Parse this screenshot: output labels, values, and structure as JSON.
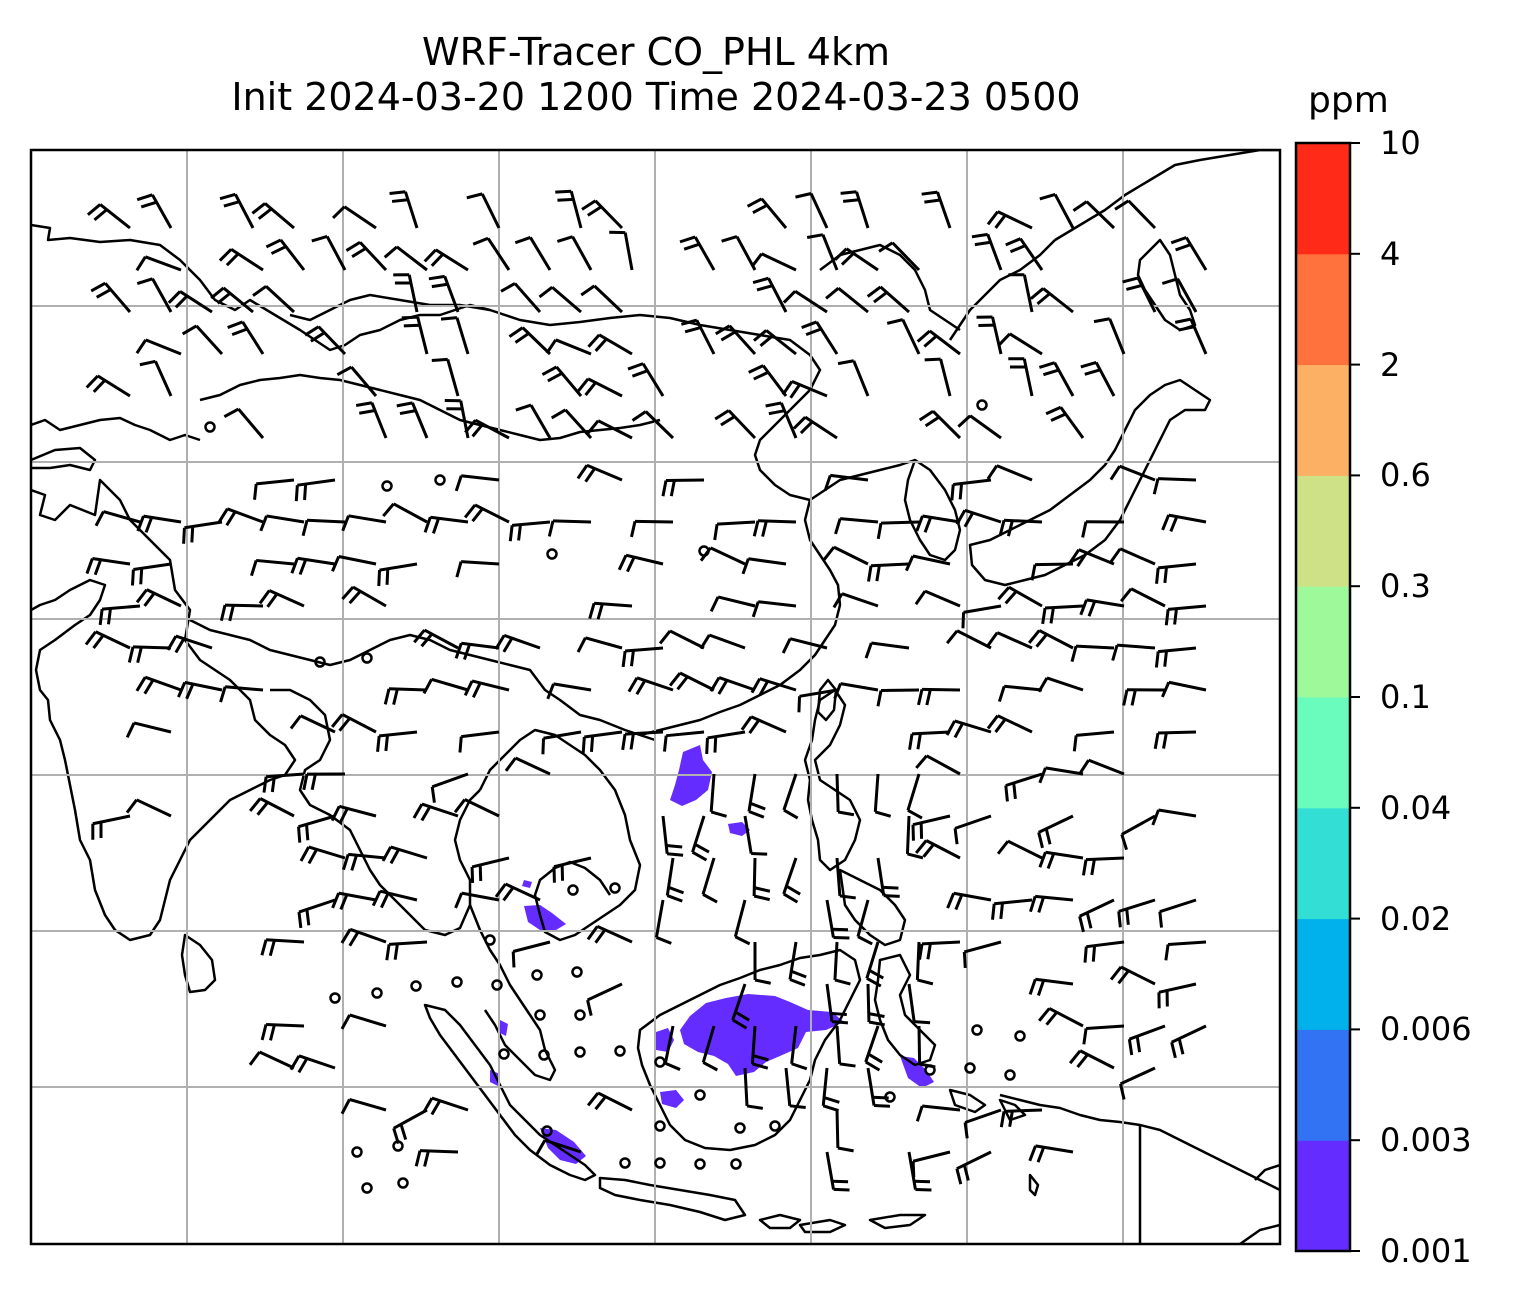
{
  "title": {
    "line1": "WRF-Tracer CO_PHL 4km",
    "line2": "Init 2024-03-20 1200 Time 2024-03-23 0500"
  },
  "colorbar": {
    "unit": "ppm",
    "levels": [
      "0.001",
      "0.003",
      "0.006",
      "0.02",
      "0.04",
      "0.1",
      "0.3",
      "0.6",
      "2",
      "4",
      "10"
    ],
    "colors": [
      "#652cff",
      "#3273f4",
      "#01b1ec",
      "#33dfd4",
      "#69fcbd",
      "#9ef99b",
      "#cfe186",
      "#fcb064",
      "#ff713d",
      "#ff2b18"
    ]
  },
  "map": {
    "background": "#ffffff",
    "coastline_color": "#000000",
    "gridline_color": "#b0b0b0",
    "tracer_color": "#652cff"
  }
}
